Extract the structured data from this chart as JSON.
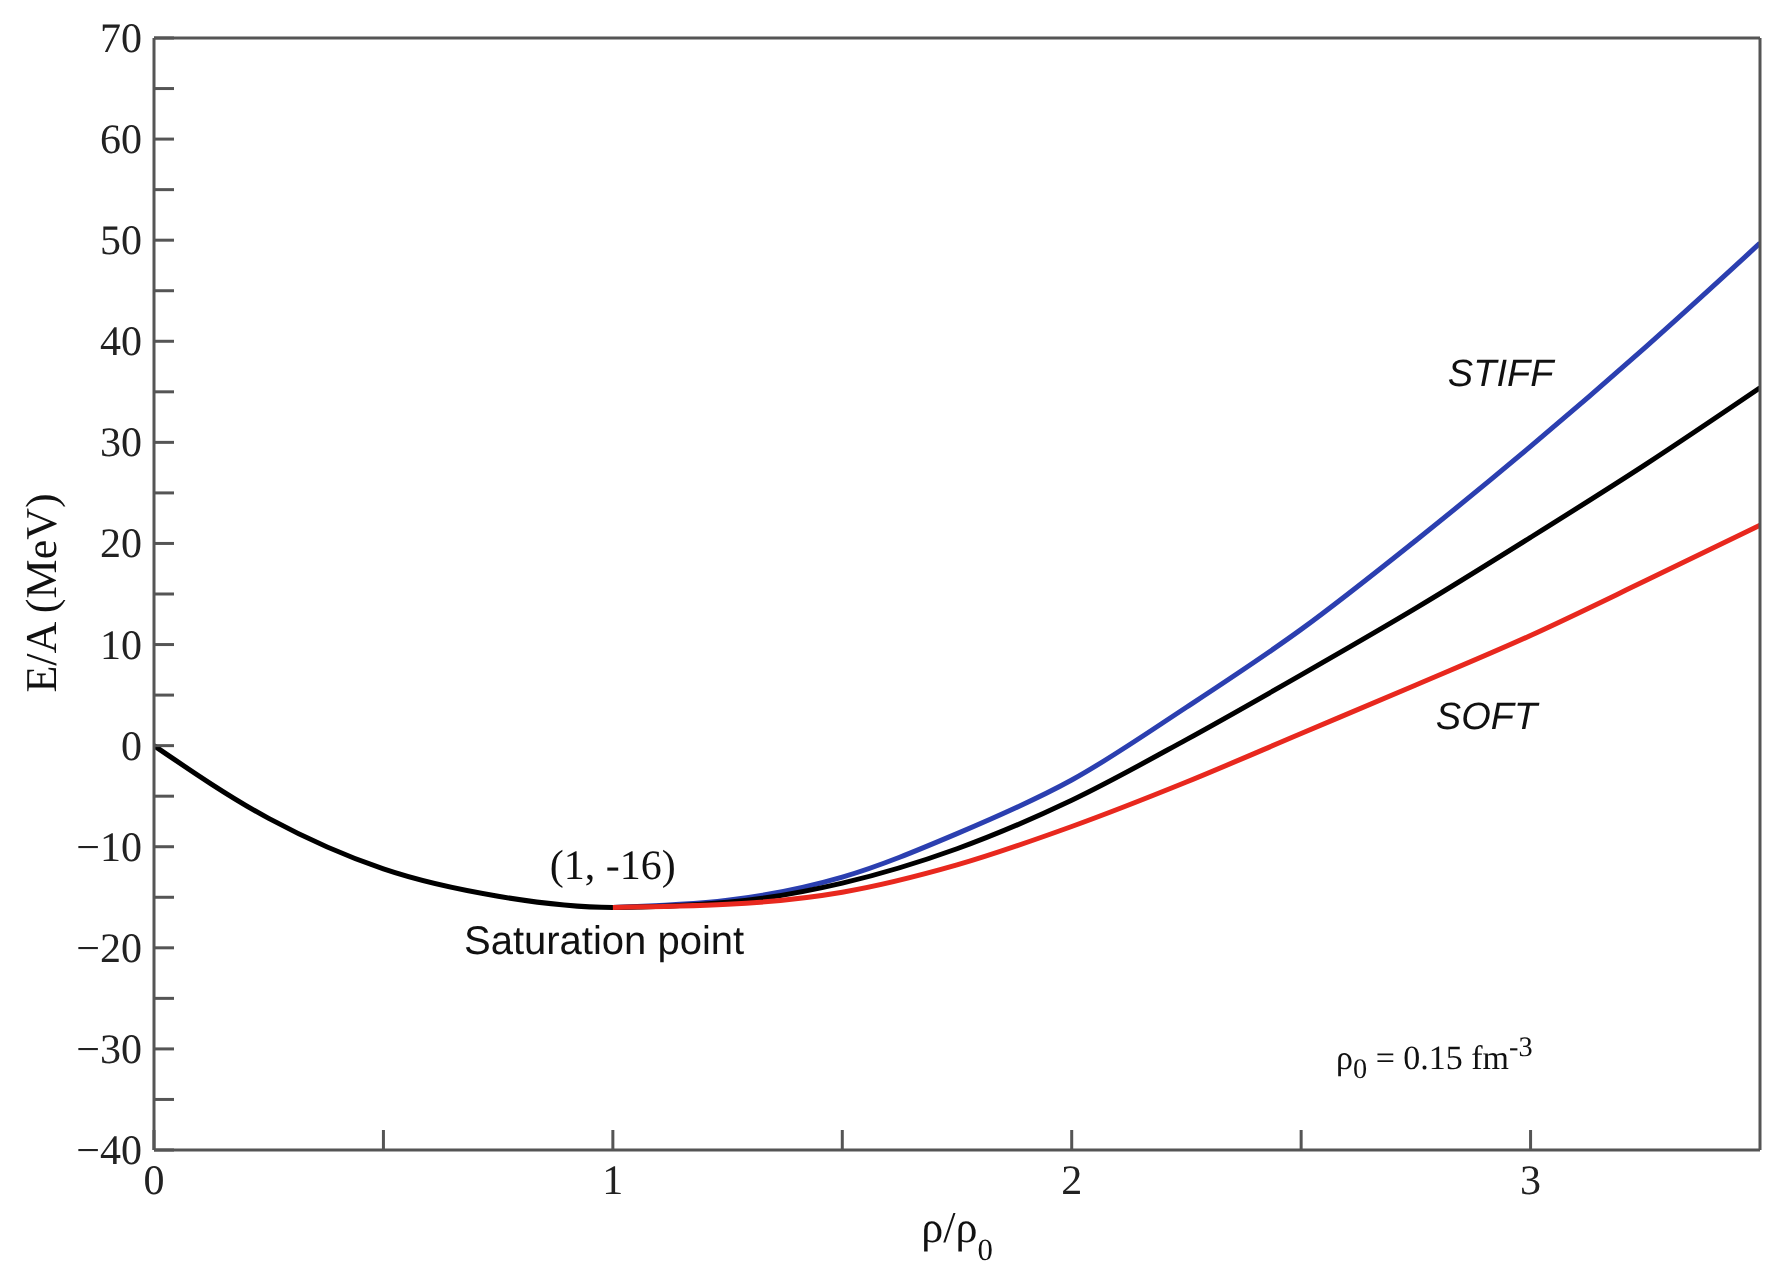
{
  "chart_data": {
    "type": "line",
    "xlabel": "ρ/ρ$_{0}$",
    "ylabel": "E/A (MeV)",
    "xlim": [
      0,
      3.5
    ],
    "ylim": [
      -40,
      70
    ],
    "xticks": [
      0,
      {
        "value": 0.5,
        "label": null
      },
      1,
      {
        "value": 1.5,
        "label": null
      },
      2,
      {
        "value": 2.5,
        "label": null
      },
      3
    ],
    "yticks": [
      -40,
      {
        "value": -35,
        "label": null
      },
      -30,
      {
        "value": -25,
        "label": null
      },
      -20,
      {
        "value": -15,
        "label": null
      },
      -10,
      {
        "value": -5,
        "label": null
      },
      0,
      {
        "value": 5,
        "label": null
      },
      10,
      {
        "value": 15,
        "label": null
      },
      20,
      {
        "value": 25,
        "label": null
      },
      30,
      {
        "value": 35,
        "label": null
      },
      40,
      {
        "value": 45,
        "label": null
      },
      50,
      {
        "value": 55,
        "label": null
      },
      60,
      {
        "value": 65,
        "label": null
      },
      70
    ],
    "grid": false,
    "legend": false,
    "marker": "none",
    "line_style": "solid",
    "series": [
      {
        "name": "STIFF",
        "color": "#2b3fb0",
        "x": [
          1,
          1.25,
          1.5,
          1.75,
          2,
          2.25,
          2.5,
          2.75,
          3,
          3.25,
          3.5
        ],
        "values": [
          -16,
          -15.3,
          -13.0,
          -8.7,
          -3.4,
          3.8,
          11.5,
          20.3,
          29.6,
          39.4,
          49.7
        ]
      },
      {
        "color": "#000000",
        "x": [
          0,
          0.25,
          0.5,
          0.75,
          1,
          1.25,
          1.5,
          1.75,
          2,
          2.25,
          2.5,
          2.75,
          3,
          3.25,
          3.5
        ],
        "values": [
          0,
          -7.2,
          -12.2,
          -14.9,
          -16,
          -15.5,
          -13.6,
          -10.2,
          -5.4,
          0.6,
          7,
          13.6,
          20.6,
          27.8,
          35.4
        ]
      },
      {
        "name": "SOFT",
        "color": "#e8281e",
        "x": [
          1,
          1.25,
          1.5,
          1.75,
          2,
          2.25,
          2.5,
          2.75,
          3,
          3.25,
          3.5
        ],
        "values": [
          -16,
          -15.7,
          -14.5,
          -11.8,
          -8,
          -3.6,
          1.2,
          6,
          10.9,
          16.3,
          21.8
        ]
      }
    ],
    "annotations": [
      {
        "text": "(1, -16)",
        "x": 1,
        "y": -16
      },
      "Saturation point",
      "ρ$_{0}$ = 0.15 fm$^{-3}$"
    ]
  }
}
